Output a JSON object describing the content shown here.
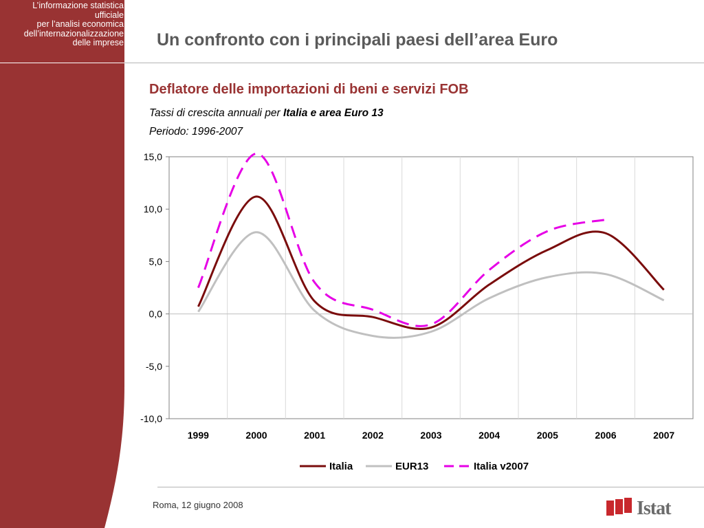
{
  "sidebar": {
    "lines": [
      "L’informazione statistica",
      "ufficiale",
      "per l’analisi economica",
      "dell’internazionalizzazione",
      "delle imprese"
    ],
    "color": "#993333"
  },
  "header": {
    "title": "Un confronto con i principali paesi dell’area Euro"
  },
  "chart_header": {
    "title": "Deflatore delle importazioni di beni e servizi FOB",
    "subtitle_prefix": "Tassi di crescita annuali per ",
    "subtitle_bold": "Italia e area Euro 13",
    "period": "Periodo: 1996-2007"
  },
  "chart_data": {
    "type": "line",
    "categories": [
      "1999",
      "2000",
      "2001",
      "2002",
      "2003",
      "2004",
      "2005",
      "2006",
      "2007"
    ],
    "ylim": [
      -10,
      15
    ],
    "yticks": [
      15,
      10,
      5,
      0,
      -5,
      -10
    ],
    "ytick_labels": [
      "15,0",
      "10,0",
      "5,0",
      "0,0",
      "-5,0",
      "-10,0"
    ],
    "grid": "vertical",
    "legend": "bottom",
    "series": [
      {
        "name": "Italia",
        "values": [
          0.7,
          11.2,
          1.2,
          -0.3,
          -1.3,
          2.8,
          6.1,
          7.7,
          2.3
        ],
        "color": "#7a0c0c",
        "style": "solid"
      },
      {
        "name": "EUR13",
        "values": [
          0.2,
          7.8,
          0.3,
          -2.1,
          -1.7,
          1.5,
          3.5,
          3.8,
          1.3
        ],
        "color": "#c0c0c0",
        "style": "solid"
      },
      {
        "name": "Italia v2007",
        "values": [
          2.5,
          15.3,
          3.0,
          0.4,
          -1.0,
          4.2,
          7.9,
          9.0,
          null
        ],
        "color": "#e600e6",
        "style": "dashed"
      }
    ]
  },
  "footer": {
    "date": "Roma, 12 giugno 2008",
    "logo_text": "Istat"
  }
}
